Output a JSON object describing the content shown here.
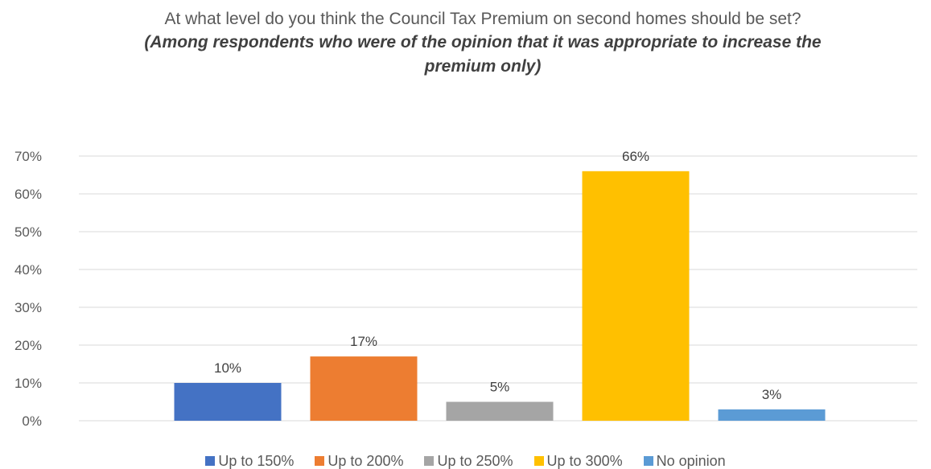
{
  "chart_data": {
    "type": "bar",
    "title": "At what level do you think the Council Tax Premium on second homes should be set?",
    "subtitle": "(Among respondents who were of the opinion that it was appropriate to increase the premium only)",
    "categories": [
      "Up to 150%",
      "Up to 200%",
      "Up to 250%",
      "Up to 300%",
      "No opinion"
    ],
    "values": [
      10,
      17,
      5,
      66,
      3
    ],
    "data_labels": [
      "10%",
      "17%",
      "5%",
      "66%",
      "3%"
    ],
    "colors": [
      "#4472C4",
      "#ED7D31",
      "#A5A5A5",
      "#FFC000",
      "#5B9BD5"
    ],
    "ylim": [
      0,
      70
    ],
    "yticks": [
      "0%",
      "10%",
      "20%",
      "30%",
      "40%",
      "50%",
      "60%",
      "70%"
    ],
    "ytick_values": [
      0,
      10,
      20,
      30,
      40,
      50,
      60,
      70
    ],
    "grid": true,
    "legend_position": "bottom"
  }
}
